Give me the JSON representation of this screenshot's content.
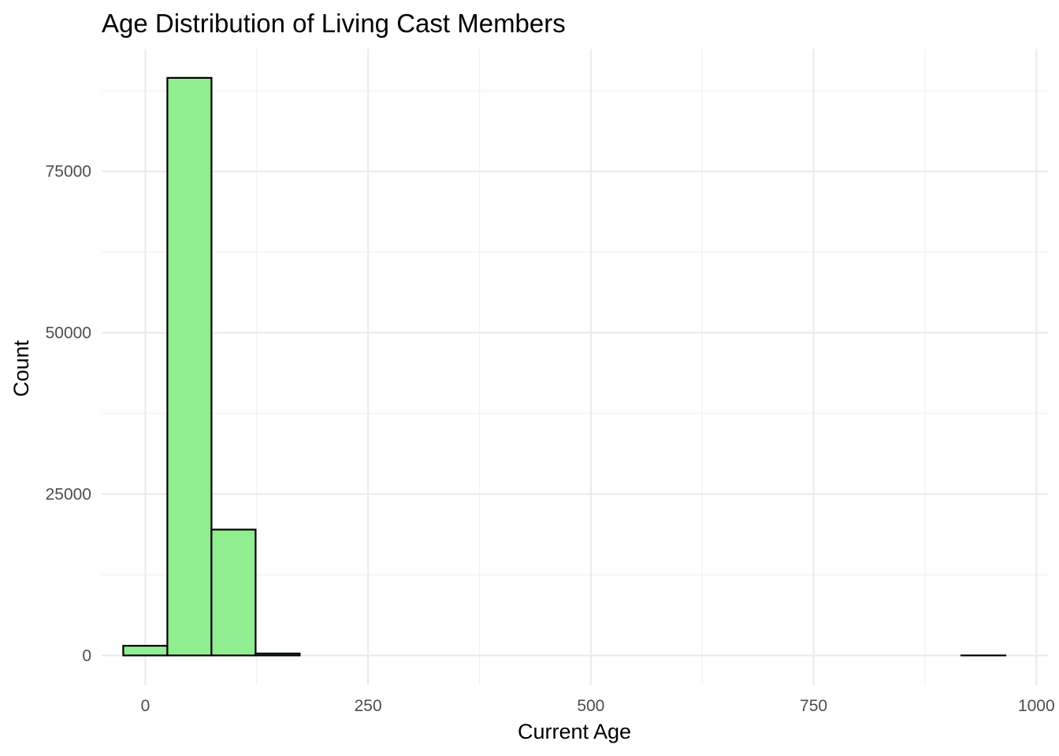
{
  "chart_data": {
    "type": "bar",
    "title": "Age Distribution of Living Cast Members",
    "xlabel": "Current Age",
    "ylabel": "Count",
    "xlim": [
      -49,
      1013
    ],
    "ylim": [
      -4600,
      94000
    ],
    "x_ticks": [
      0,
      250,
      500,
      750,
      1000
    ],
    "y_ticks": [
      0,
      25000,
      50000,
      75000
    ],
    "x_minor": [
      125,
      375,
      625,
      875
    ],
    "y_minor": [
      12500,
      37500,
      62500,
      87500
    ],
    "grid": true,
    "bin_width": 49.5,
    "bins": [
      {
        "start": -24.75,
        "end": 24.75,
        "count": 1500
      },
      {
        "start": 24.75,
        "end": 74.25,
        "count": 89500
      },
      {
        "start": 74.25,
        "end": 123.75,
        "count": 19500
      },
      {
        "start": 123.75,
        "end": 173.25,
        "count": 300
      },
      {
        "start": 173.25,
        "end": 222.75,
        "count": 0
      },
      {
        "start": 222.75,
        "end": 272.25,
        "count": 0
      },
      {
        "start": 272.25,
        "end": 321.75,
        "count": 0
      },
      {
        "start": 321.75,
        "end": 371.25,
        "count": 0
      },
      {
        "start": 371.25,
        "end": 420.75,
        "count": 0
      },
      {
        "start": 420.75,
        "end": 470.25,
        "count": 0
      },
      {
        "start": 470.25,
        "end": 519.75,
        "count": 0
      },
      {
        "start": 519.75,
        "end": 569.25,
        "count": 0
      },
      {
        "start": 569.25,
        "end": 618.75,
        "count": 0
      },
      {
        "start": 618.75,
        "end": 668.25,
        "count": 0
      },
      {
        "start": 668.25,
        "end": 717.75,
        "count": 0
      },
      {
        "start": 717.75,
        "end": 767.25,
        "count": 0
      },
      {
        "start": 767.25,
        "end": 816.75,
        "count": 0
      },
      {
        "start": 816.75,
        "end": 866.25,
        "count": 0
      },
      {
        "start": 866.25,
        "end": 915.75,
        "count": 0
      },
      {
        "start": 915.75,
        "end": 965.25,
        "count": 1
      }
    ],
    "fill_color": "#90EE90",
    "outline_color": "#000000"
  }
}
